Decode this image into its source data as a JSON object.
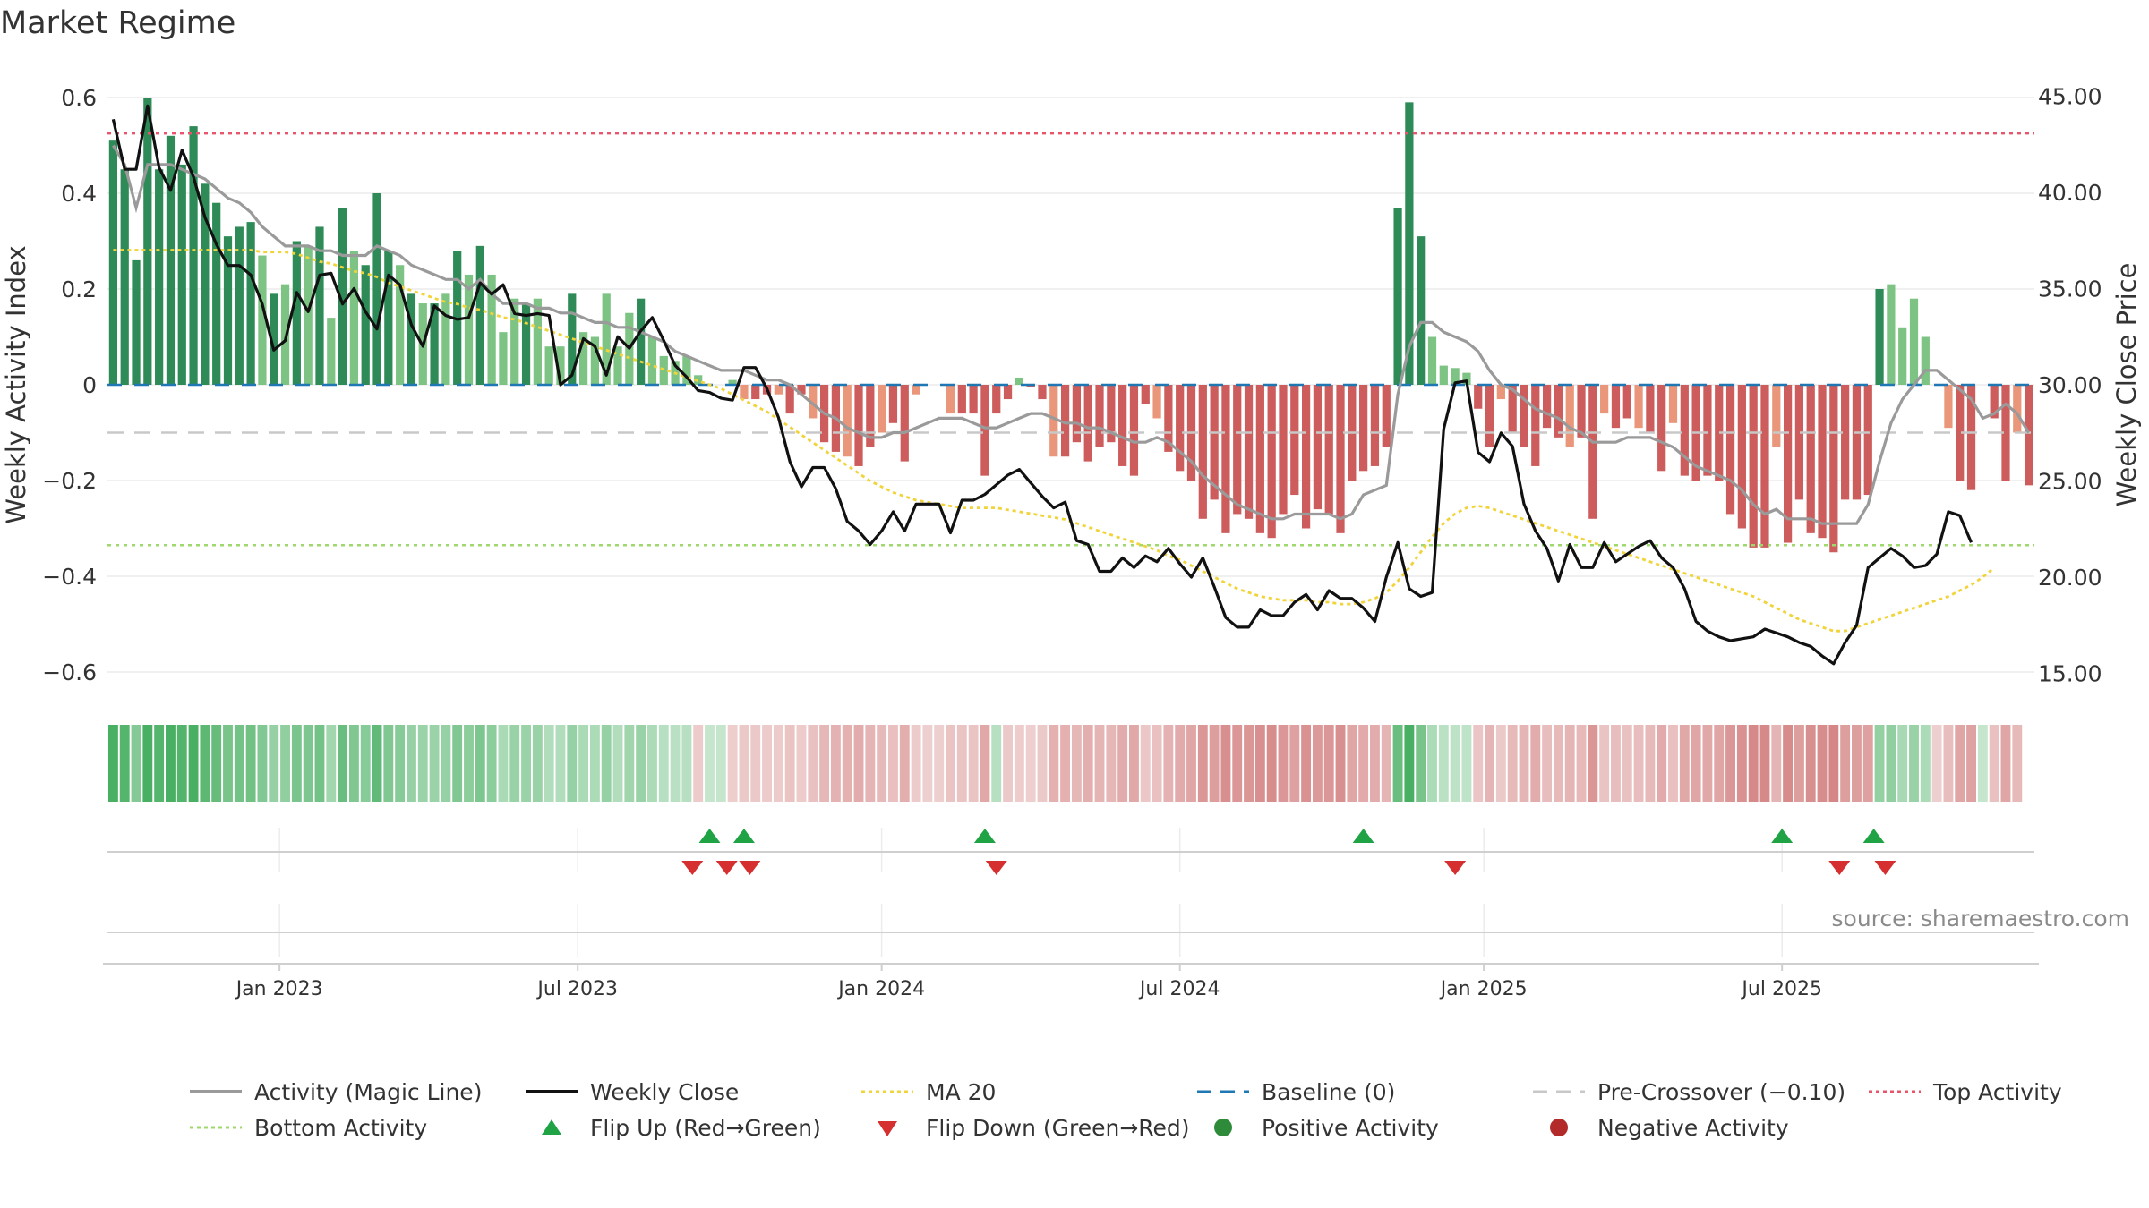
{
  "title": "Market Regime",
  "source": "source: sharemaestro.com",
  "colors": {
    "pos_dark": "#2e8b57",
    "pos_light": "#7dc383",
    "neg_dark": "#cd5c5c",
    "neg_light": "#e9967a",
    "magic": "#9a9a9a",
    "close": "#111111",
    "ma": "#f1d33a",
    "baseline": "#1f77b4",
    "precross": "#c8c8c8",
    "top": "#e8556b",
    "bottom": "#9fd86d",
    "flip_up": "#1fa345",
    "flip_down": "#d62f2f"
  },
  "legend": [
    {
      "label": "Activity (Magic Line)",
      "icon": "gray-line"
    },
    {
      "label": "Weekly Close",
      "icon": "black-line"
    },
    {
      "label": "MA 20",
      "icon": "yellow-dotted-line"
    },
    {
      "label": "Baseline (0)",
      "icon": "blue-dashed-line"
    },
    {
      "label": "Pre-Crossover (−0.10)",
      "icon": "gray-dashed-line"
    },
    {
      "label": "Top Activity",
      "icon": "red-dotted-line"
    },
    {
      "label": "Bottom Activity",
      "icon": "green-dotted-line"
    },
    {
      "label": "Flip Up (Red→Green)",
      "icon": "green-triangle-up"
    },
    {
      "label": "Flip Down (Green→Red)",
      "icon": "red-triangle-down"
    },
    {
      "label": "Positive Activity",
      "icon": "green-dot"
    },
    {
      "label": "Negative Activity",
      "icon": "red-dot"
    }
  ],
  "chart_data": {
    "type": "bar",
    "ylabel": "Weekly Activity Index",
    "y2label": "Weekly Close Price",
    "ylim": [
      -0.64,
      0.64
    ],
    "y2lim": [
      14.3,
      46.3
    ],
    "yticks": [
      -0.6,
      -0.4,
      -0.2,
      0,
      0.2,
      0.4,
      0.6
    ],
    "yticklabels": [
      "−0.6",
      "−0.4",
      "−0.2",
      "0",
      "0.2",
      "0.4",
      "0.6"
    ],
    "y2ticks": [
      15,
      20,
      25,
      30,
      35,
      40,
      45
    ],
    "y2ticklabels": [
      "15.00",
      "20.00",
      "25.00",
      "30.00",
      "35.00",
      "40.00",
      "45.00"
    ],
    "xticklabels": [
      "Jan 2023",
      "Jul 2023",
      "Jan 2024",
      "Jul 2024",
      "Jan 2025",
      "Jul 2025"
    ],
    "xtick_weeks": [
      15,
      41,
      67.5,
      93.5,
      120,
      146
    ],
    "grid": true,
    "legend_position": "bottom",
    "reference_lines": {
      "baseline": 0,
      "pre_crossover": -0.1,
      "top_activity": 0.525,
      "bottom_activity": -0.335
    },
    "activity_index": [
      0.51,
      0.45,
      0.26,
      0.6,
      0.45,
      0.52,
      0.46,
      0.54,
      0.42,
      0.38,
      0.31,
      0.33,
      0.34,
      0.27,
      0.19,
      0.21,
      0.3,
      0.29,
      0.33,
      0.14,
      0.37,
      0.28,
      0.25,
      0.4,
      0.28,
      0.25,
      0.19,
      0.17,
      0.17,
      0.19,
      0.28,
      0.23,
      0.29,
      0.23,
      0.11,
      0.18,
      0.17,
      0.18,
      0.08,
      0.08,
      0.19,
      0.11,
      0.1,
      0.19,
      0.08,
      0.15,
      0.18,
      0.1,
      0.06,
      0.05,
      0.06,
      0.02,
      0,
      0,
      0.01,
      -0.03,
      -0.03,
      -0.02,
      -0.02,
      -0.06,
      -0.02,
      -0.07,
      -0.12,
      -0.14,
      -0.15,
      -0.17,
      -0.13,
      -0.1,
      -0.08,
      -0.16,
      -0.02,
      0,
      0,
      -0.06,
      -0.06,
      -0.06,
      -0.19,
      -0.06,
      -0.03,
      0.015,
      -0.005,
      -0.03,
      -0.15,
      -0.15,
      -0.12,
      -0.16,
      -0.13,
      -0.12,
      -0.17,
      -0.19,
      -0.04,
      -0.07,
      -0.14,
      -0.18,
      -0.2,
      -0.28,
      -0.24,
      -0.31,
      -0.27,
      -0.28,
      -0.31,
      -0.32,
      -0.27,
      -0.23,
      -0.3,
      -0.26,
      -0.27,
      -0.31,
      -0.2,
      -0.18,
      -0.17,
      -0.13,
      0.37,
      0.59,
      0.31,
      0.1,
      0.04,
      0.035,
      0.025,
      -0.05,
      -0.13,
      -0.03,
      -0.1,
      -0.13,
      -0.17,
      -0.09,
      -0.11,
      -0.13,
      -0.11,
      -0.28,
      -0.06,
      -0.09,
      -0.07,
      -0.09,
      -0.1,
      -0.18,
      -0.08,
      -0.19,
      -0.2,
      -0.19,
      -0.2,
      -0.27,
      -0.3,
      -0.34,
      -0.34,
      -0.13,
      -0.33,
      -0.24,
      -0.31,
      -0.32,
      -0.35,
      -0.24,
      -0.24,
      -0.23,
      0.2,
      0.21,
      0.12,
      0.18,
      0.1,
      0,
      -0.09,
      -0.2,
      -0.22,
      0,
      -0.07,
      -0.2,
      -0.1,
      -0.21
    ],
    "activity_magic_line": [
      0.5,
      0.46,
      0.37,
      0.46,
      0.46,
      0.46,
      0.45,
      0.44,
      0.43,
      0.41,
      0.39,
      0.38,
      0.36,
      0.33,
      0.31,
      0.29,
      0.29,
      0.29,
      0.28,
      0.28,
      0.27,
      0.27,
      0.27,
      0.29,
      0.28,
      0.27,
      0.25,
      0.24,
      0.23,
      0.22,
      0.22,
      0.2,
      0.22,
      0.19,
      0.17,
      0.17,
      0.17,
      0.16,
      0.16,
      0.15,
      0.15,
      0.14,
      0.13,
      0.13,
      0.12,
      0.12,
      0.11,
      0.1,
      0.09,
      0.07,
      0.06,
      0.05,
      0.04,
      0.03,
      0.03,
      0.03,
      0.02,
      0.01,
      0.01,
      0,
      -0.02,
      -0.04,
      -0.06,
      -0.07,
      -0.09,
      -0.1,
      -0.11,
      -0.11,
      -0.1,
      -0.1,
      -0.09,
      -0.08,
      -0.07,
      -0.07,
      -0.07,
      -0.08,
      -0.09,
      -0.09,
      -0.08,
      -0.07,
      -0.06,
      -0.06,
      -0.07,
      -0.08,
      -0.08,
      -0.09,
      -0.09,
      -0.1,
      -0.11,
      -0.12,
      -0.12,
      -0.11,
      -0.12,
      -0.14,
      -0.16,
      -0.19,
      -0.21,
      -0.23,
      -0.25,
      -0.26,
      -0.27,
      -0.28,
      -0.28,
      -0.27,
      -0.27,
      -0.27,
      -0.27,
      -0.28,
      -0.27,
      -0.23,
      -0.22,
      -0.21,
      -0.02,
      0.08,
      0.13,
      0.13,
      0.11,
      0.1,
      0.09,
      0.07,
      0.03,
      0,
      -0.01,
      -0.03,
      -0.05,
      -0.06,
      -0.07,
      -0.09,
      -0.1,
      -0.12,
      -0.12,
      -0.12,
      -0.11,
      -0.11,
      -0.11,
      -0.12,
      -0.13,
      -0.15,
      -0.17,
      -0.18,
      -0.19,
      -0.2,
      -0.22,
      -0.25,
      -0.27,
      -0.26,
      -0.28,
      -0.28,
      -0.28,
      -0.29,
      -0.29,
      -0.29,
      -0.29,
      -0.25,
      -0.16,
      -0.08,
      -0.03,
      0,
      0.03,
      0.03,
      0.01,
      -0.01,
      -0.03,
      -0.07,
      -0.06,
      -0.04,
      -0.06,
      -0.1
    ]
  },
  "weekly_close": [
    43.8,
    41.2,
    41.2,
    44.5,
    41.3,
    40.1,
    42.2,
    40.8,
    38.7,
    37.3,
    36.2,
    36.2,
    35.7,
    34.2,
    31.8,
    32.3,
    34.8,
    33.8,
    35.7,
    35.8,
    34.2,
    35.0,
    33.8,
    32.9,
    35.7,
    35.2,
    33.1,
    32.0,
    34.1,
    33.6,
    33.4,
    33.5,
    35.3,
    34.7,
    35.2,
    33.7,
    33.6,
    33.7,
    33.6,
    30.0,
    30.5,
    32.4,
    32.0,
    30.5,
    32.5,
    31.9,
    32.8,
    33.5,
    32.3,
    31.0,
    30.4,
    29.7,
    29.6,
    29.3,
    29.2,
    30.9,
    30.9,
    29.8,
    28.3,
    26.0,
    24.7,
    25.7,
    25.7,
    24.6,
    22.9,
    22.4,
    21.7,
    22.4,
    23.4,
    22.4,
    23.8,
    23.8,
    23.8,
    22.3,
    24.0,
    24.0,
    24.3,
    24.8,
    25.3,
    25.6,
    24.9,
    24.2,
    23.6,
    23.9,
    21.9,
    21.7,
    20.3,
    20.3,
    21.0,
    20.5,
    21.1,
    20.8,
    21.5,
    20.7,
    20.0,
    21.0,
    19.5,
    17.9,
    17.4,
    17.4,
    18.3,
    18.0,
    18.0,
    18.7,
    19.1,
    18.3,
    19.3,
    18.9,
    18.9,
    18.4,
    17.7,
    20.0,
    21.8,
    19.4,
    19.0,
    19.2,
    27.7,
    30.1,
    30.2,
    26.5,
    26.0,
    27.5,
    26.8,
    23.8,
    22.4,
    21.5,
    19.8,
    21.7,
    20.5,
    20.5,
    21.8,
    20.8,
    21.2,
    21.6,
    21.9,
    21.0,
    20.5,
    19.4,
    17.7,
    17.2,
    16.9,
    16.7,
    16.8,
    16.9,
    17.3,
    17.1,
    16.9,
    16.6,
    16.4,
    15.9,
    15.5,
    16.6,
    17.5,
    20.5,
    21.0,
    21.5,
    21.1,
    20.5,
    20.6,
    21.2,
    23.4,
    23.2,
    21.8
  ],
  "ma20": [
    37.0,
    37.0,
    37.0,
    37.0,
    37.0,
    37.0,
    37.0,
    37.0,
    37.0,
    37.0,
    37.0,
    37.0,
    37.0,
    36.9,
    36.9,
    36.9,
    36.8,
    36.6,
    36.4,
    36.3,
    36.1,
    35.9,
    35.8,
    35.6,
    35.3,
    35.1,
    34.9,
    34.7,
    34.5,
    34.3,
    34.2,
    34.0,
    33.9,
    33.7,
    33.5,
    33.4,
    33.2,
    33.0,
    32.8,
    32.6,
    32.4,
    32.2,
    32.0,
    31.8,
    31.6,
    31.4,
    31.2,
    31.0,
    30.8,
    30.6,
    30.4,
    30.2,
    30.0,
    29.8,
    29.5,
    29.2,
    28.9,
    28.6,
    28.2,
    27.8,
    27.4,
    27.0,
    26.6,
    26.2,
    25.8,
    25.4,
    25.0,
    24.7,
    24.4,
    24.2,
    24.0,
    23.9,
    23.8,
    23.7,
    23.6,
    23.6,
    23.6,
    23.6,
    23.5,
    23.4,
    23.3,
    23.2,
    23.1,
    23.0,
    22.8,
    22.6,
    22.4,
    22.2,
    22.0,
    21.8,
    21.6,
    21.4,
    21.1,
    20.9,
    20.6,
    20.3,
    20.0,
    19.7,
    19.4,
    19.2,
    19.0,
    18.9,
    18.8,
    18.8,
    18.8,
    18.7,
    18.7,
    18.6,
    18.6,
    18.7,
    18.9,
    19.2,
    19.8,
    20.5,
    21.3,
    22.1,
    22.8,
    23.3,
    23.6,
    23.7,
    23.6,
    23.4,
    23.2,
    23.0,
    22.8,
    22.6,
    22.4,
    22.2,
    22.0,
    21.8,
    21.6,
    21.4,
    21.2,
    21.0,
    20.8,
    20.6,
    20.4,
    20.2,
    20.0,
    19.8,
    19.6,
    19.4,
    19.2,
    19.0,
    18.7,
    18.4,
    18.1,
    17.8,
    17.6,
    17.4,
    17.2,
    17.2,
    17.4,
    17.6,
    17.8,
    18.0,
    18.2,
    18.4,
    18.6,
    18.8,
    19.0,
    19.3,
    19.6,
    20.0,
    20.5
  ],
  "ribbon_regime": [
    "G",
    "G",
    "G",
    "G",
    "G",
    "G",
    "G",
    "G",
    "G",
    "G",
    "G",
    "G",
    "G",
    "G",
    "G",
    "G",
    "G",
    "G",
    "G",
    "G",
    "G",
    "G",
    "G",
    "G",
    "G",
    "G",
    "G",
    "G",
    "G",
    "G",
    "G",
    "G",
    "G",
    "G",
    "G",
    "G",
    "G",
    "G",
    "G",
    "G",
    "G",
    "G",
    "G",
    "G",
    "G",
    "G",
    "G",
    "G",
    "G",
    "G",
    "G",
    "R",
    "G",
    "G",
    "R",
    "R",
    "R",
    "R",
    "R",
    "R",
    "R",
    "R",
    "R",
    "R",
    "R",
    "R",
    "R",
    "R",
    "R",
    "R",
    "R",
    "R",
    "R",
    "R",
    "R",
    "R",
    "R",
    "G",
    "R",
    "R",
    "R",
    "R",
    "R",
    "R",
    "R",
    "R",
    "R",
    "R",
    "R",
    "R",
    "R",
    "R",
    "R",
    "R",
    "R",
    "R",
    "R",
    "R",
    "R",
    "R",
    "R",
    "R",
    "R",
    "R",
    "R",
    "R",
    "R",
    "R",
    "R",
    "R",
    "R",
    "R",
    "G",
    "G",
    "G",
    "G",
    "G",
    "G",
    "G",
    "R",
    "R",
    "R",
    "R",
    "R",
    "R",
    "R",
    "R",
    "R",
    "R",
    "R",
    "R",
    "R",
    "R",
    "R",
    "R",
    "R",
    "R",
    "R",
    "R",
    "R",
    "R",
    "R",
    "R",
    "R",
    "R",
    "R",
    "R",
    "R",
    "R",
    "R",
    "R",
    "R",
    "R",
    "R",
    "G",
    "G",
    "G",
    "G",
    "G",
    "R",
    "R",
    "R",
    "R",
    "G",
    "R",
    "R",
    "R"
  ],
  "flip_up_weeks": [
    52.5,
    55.5,
    76.5,
    109.5,
    146,
    154
  ],
  "flip_down_weeks": [
    51,
    54,
    56,
    77.5,
    117.5,
    151,
    155
  ]
}
